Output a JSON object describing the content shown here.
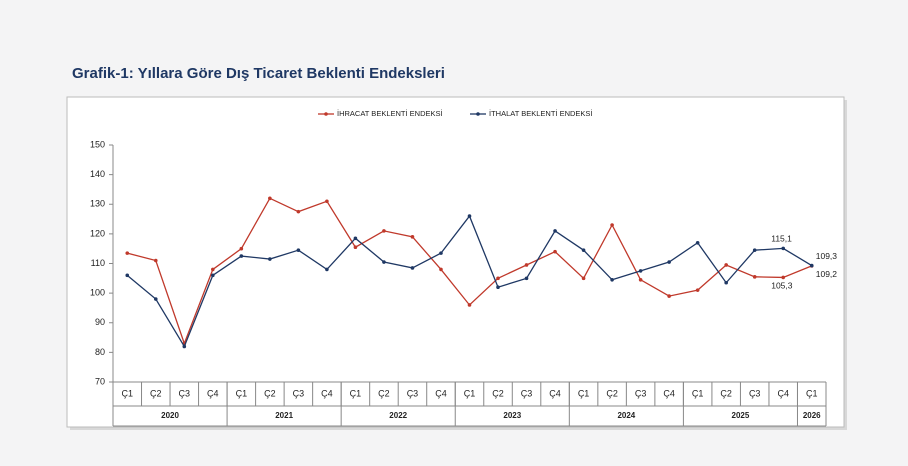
{
  "chart_data": {
    "type": "line",
    "title": "Grafik-1: Yıllara Göre Dış Ticaret Beklenti Endeksleri",
    "categories": [
      "Ç1",
      "Ç2",
      "Ç3",
      "Ç4",
      "Ç1",
      "Ç2",
      "Ç3",
      "Ç4",
      "Ç1",
      "Ç2",
      "Ç3",
      "Ç4",
      "Ç1",
      "Ç2",
      "Ç3",
      "Ç4",
      "Ç1",
      "Ç2",
      "Ç3",
      "Ç4",
      "Ç1",
      "Ç2",
      "Ç3",
      "Ç4",
      "Ç1"
    ],
    "years": [
      "2020",
      "2021",
      "2022",
      "2023",
      "2024",
      "2025",
      "2026"
    ],
    "series": [
      {
        "name": "İHRACAT BEKLENTİ ENDEKSİ",
        "color": "#c0392b",
        "values": [
          113.5,
          111,
          83,
          108,
          115,
          132,
          127.5,
          131,
          115.5,
          121,
          119,
          108,
          96,
          105,
          109.5,
          114,
          105,
          123,
          104.5,
          99,
          101,
          109.5,
          105.5,
          105.3,
          109.2
        ],
        "value_labels": [
          null,
          null,
          null,
          null,
          null,
          null,
          null,
          null,
          null,
          null,
          null,
          null,
          null,
          null,
          null,
          null,
          null,
          null,
          null,
          null,
          null,
          null,
          null,
          "105,3",
          "109,2"
        ]
      },
      {
        "name": "İTHALAT BEKLENTİ ENDEKSİ",
        "color": "#1f3864",
        "values": [
          106,
          98,
          82,
          106,
          112.5,
          111.5,
          114.5,
          108,
          118.5,
          110.5,
          108.5,
          113.5,
          126,
          102,
          105,
          121,
          114.5,
          104.5,
          107.5,
          110.5,
          117,
          103.5,
          114.5,
          115.1,
          109.3
        ],
        "value_labels": [
          null,
          null,
          null,
          null,
          null,
          null,
          null,
          null,
          null,
          null,
          null,
          null,
          null,
          null,
          null,
          null,
          null,
          null,
          null,
          null,
          null,
          null,
          null,
          "115,1",
          "109,3"
        ]
      }
    ],
    "ylim": [
      70,
      150
    ],
    "yticks": [
      70,
      80,
      90,
      100,
      110,
      120,
      130,
      140,
      150
    ],
    "grid": false,
    "legend": "top"
  }
}
